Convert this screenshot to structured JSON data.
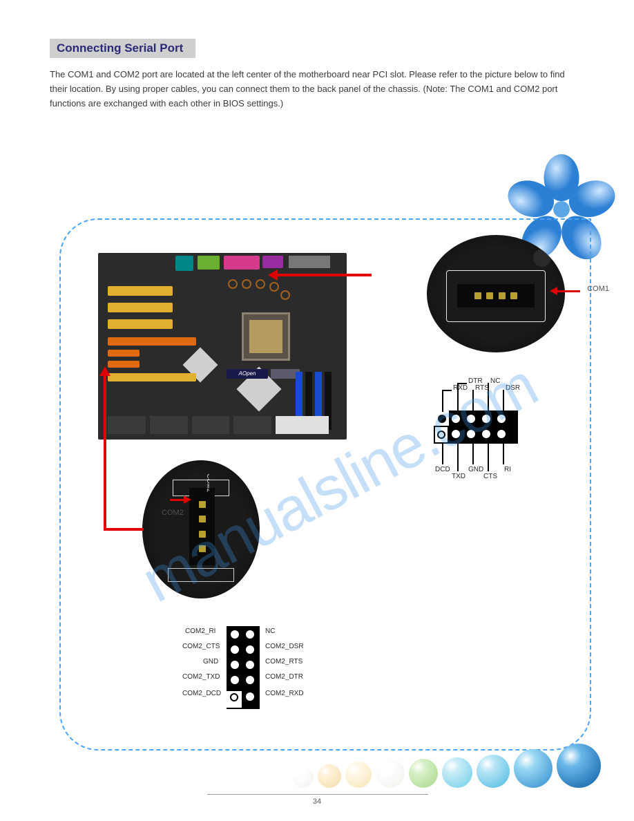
{
  "section_title": "Connecting Serial Port",
  "body_text": "The COM1 and COM2 port are located at the left center of the motherboard near PCI slot. Please refer to the picture below to find their location. By using proper cables, you can connect them to the back panel of the chassis. (Note: The COM1 and COM2 port functions are exchanged with each other in BIOS settings.)",
  "com1": {
    "label": "COM1",
    "pins": {
      "p1": "DCD",
      "p2": "TXD",
      "p3": "GND",
      "p4": "CTS",
      "p5": "RI",
      "p6": "RXD",
      "p7": "DTR",
      "p8": "RTS",
      "p9": "NC",
      "p10": "DSR"
    }
  },
  "com2": {
    "label": "COM2",
    "pins": {
      "p1": "COM2_RI",
      "p2": "COM2_CTS",
      "p3": "GND",
      "p4": "COM2_TXD",
      "p5": "COM2_DCD",
      "p6": "NC",
      "p7": "COM2_DSR",
      "p8": "COM2_RTS",
      "p9": "COM2_DTR",
      "p10": "COM2_RXD"
    }
  },
  "watermark": "manualsline.com",
  "page_number": "34",
  "colors": {
    "header_bg": "#cfcfcf",
    "header_text": "#2a2a7a",
    "border_dash": "#4aa3ff",
    "arrow": "#e00000",
    "pci_yellow": "#e0b030",
    "pci_orange": "#e06a10",
    "dimm_blue": "#1a4ad0",
    "dimm_black": "#101010",
    "io_teal": "#008888",
    "io_purple": "#9a2aa0",
    "io_pink": "#d63a8a",
    "io_green": "#6ab030"
  },
  "bubbles": [
    {
      "size": 30,
      "c1": "#ffffff",
      "c2": "#f0f0ea"
    },
    {
      "size": 34,
      "c1": "#fff2d8",
      "c2": "#f0dca8"
    },
    {
      "size": 38,
      "c1": "#fff8e8",
      "c2": "#f4e4b0"
    },
    {
      "size": 42,
      "c1": "#ffffff",
      "c2": "#eef2e8"
    },
    {
      "size": 42,
      "c1": "#d8f0c8",
      "c2": "#a6d888"
    },
    {
      "size": 44,
      "c1": "#c8ecf6",
      "c2": "#6cccea"
    },
    {
      "size": 48,
      "c1": "#b8e6f6",
      "c2": "#4ab8e0"
    },
    {
      "size": 56,
      "c1": "#9ad8f4",
      "c2": "#2c8acc"
    },
    {
      "size": 64,
      "c1": "#6ab8ea",
      "c2": "#0a5aa0"
    }
  ]
}
